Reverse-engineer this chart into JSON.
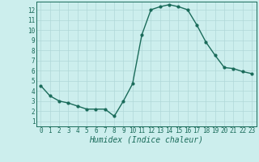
{
  "x": [
    0,
    1,
    2,
    3,
    4,
    5,
    6,
    7,
    8,
    9,
    10,
    11,
    12,
    13,
    14,
    15,
    16,
    17,
    18,
    19,
    20,
    21,
    22,
    23
  ],
  "y": [
    4.5,
    3.5,
    3.0,
    2.8,
    2.5,
    2.2,
    2.2,
    2.2,
    1.5,
    3.0,
    4.7,
    9.5,
    12.0,
    12.3,
    12.5,
    12.3,
    12.0,
    10.5,
    8.8,
    7.5,
    6.3,
    6.2,
    5.9,
    5.7
  ],
  "line_color": "#1a6b5a",
  "marker": "o",
  "markersize": 2.0,
  "linewidth": 1.0,
  "xlabel": "Humidex (Indice chaleur)",
  "xlabel_fontsize": 7,
  "bg_color": "#cceeed",
  "grid_color": "#b0d8d8",
  "xlim": [
    -0.5,
    23.5
  ],
  "ylim": [
    0.5,
    12.8
  ],
  "xticks": [
    0,
    1,
    2,
    3,
    4,
    5,
    6,
    7,
    8,
    9,
    10,
    11,
    12,
    13,
    14,
    15,
    16,
    17,
    18,
    19,
    20,
    21,
    22,
    23
  ],
  "yticks": [
    1,
    2,
    3,
    4,
    5,
    6,
    7,
    8,
    9,
    10,
    11,
    12
  ],
  "tick_fontsize": 5.5,
  "tick_color": "#1a6b5a"
}
